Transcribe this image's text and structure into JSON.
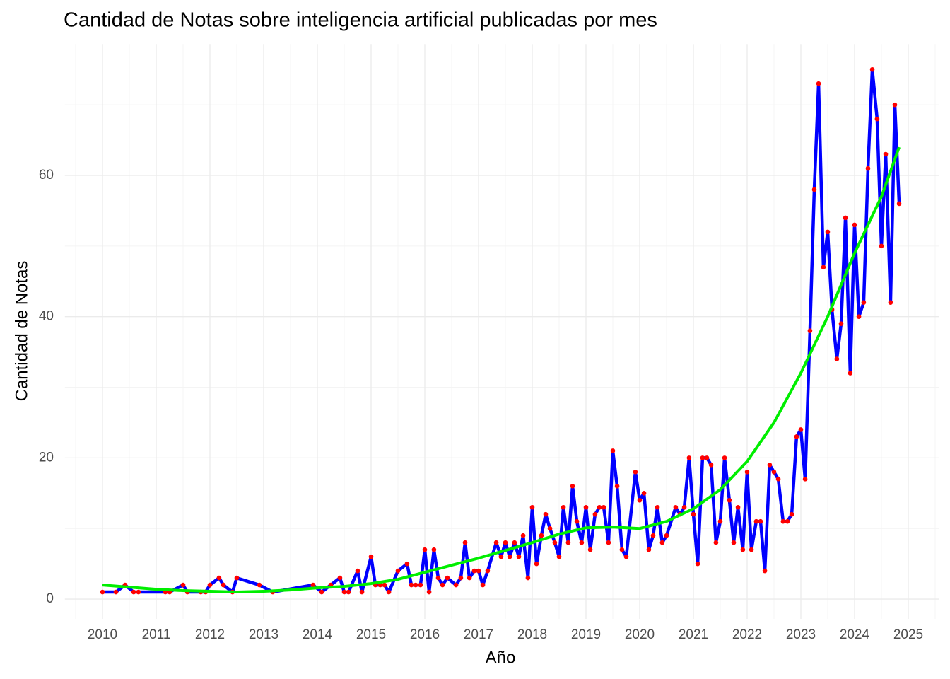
{
  "chart_data": {
    "type": "line",
    "title": "Cantidad de Notas sobre inteligencia artificial publicadas por mes",
    "x_label": "Año",
    "y_label": "Cantidad de Notas",
    "xlim": [
      2009.3,
      2025.57
    ],
    "ylim": [
      -2.8,
      78.6
    ],
    "xticks": [
      2010,
      2011,
      2012,
      2013,
      2014,
      2015,
      2016,
      2017,
      2018,
      2019,
      2020,
      2021,
      2022,
      2023,
      2024,
      2025
    ],
    "yticks": [
      0,
      20,
      40,
      60
    ],
    "x_minor_ticks": [
      2009.5,
      2010.5,
      2011.5,
      2012.5,
      2013.5,
      2014.5,
      2015.5,
      2016.5,
      2017.5,
      2018.5,
      2019.5,
      2020.5,
      2021.5,
      2022.5,
      2023.5,
      2024.5,
      2025.5
    ],
    "y_minor_ticks": [
      10,
      30,
      50,
      70
    ],
    "grid": true,
    "series": [
      {
        "color": "#0000ff",
        "marker_color": "#ff0000",
        "x": [
          2010.0,
          2010.25,
          2010.42,
          2010.58,
          2010.67,
          2011.17,
          2011.25,
          2011.5,
          2011.58,
          2011.83,
          2011.92,
          2012.0,
          2012.17,
          2012.25,
          2012.42,
          2012.5,
          2012.92,
          2013.17,
          2013.92,
          2014.08,
          2014.25,
          2014.42,
          2014.5,
          2014.58,
          2014.75,
          2014.83,
          2015.0,
          2015.08,
          2015.17,
          2015.25,
          2015.33,
          2015.5,
          2015.67,
          2015.75,
          2015.83,
          2015.92,
          2016.0,
          2016.08,
          2016.17,
          2016.25,
          2016.33,
          2016.42,
          2016.58,
          2016.67,
          2016.75,
          2016.83,
          2016.92,
          2017.0,
          2017.08,
          2017.17,
          2017.33,
          2017.42,
          2017.5,
          2017.58,
          2017.67,
          2017.75,
          2017.83,
          2017.92,
          2018.0,
          2018.08,
          2018.17,
          2018.25,
          2018.33,
          2018.42,
          2018.5,
          2018.58,
          2018.67,
          2018.75,
          2018.83,
          2018.92,
          2019.0,
          2019.08,
          2019.17,
          2019.25,
          2019.33,
          2019.42,
          2019.5,
          2019.58,
          2019.67,
          2019.75,
          2019.92,
          2020.0,
          2020.08,
          2020.17,
          2020.25,
          2020.33,
          2020.42,
          2020.5,
          2020.67,
          2020.75,
          2020.83,
          2020.92,
          2021.0,
          2021.08,
          2021.17,
          2021.25,
          2021.33,
          2021.42,
          2021.5,
          2021.58,
          2021.67,
          2021.75,
          2021.83,
          2021.92,
          2022.0,
          2022.08,
          2022.17,
          2022.25,
          2022.33,
          2022.42,
          2022.5,
          2022.58,
          2022.67,
          2022.75,
          2022.83,
          2022.92,
          2023.0,
          2023.08,
          2023.17,
          2023.25,
          2023.33,
          2023.42,
          2023.5,
          2023.58,
          2023.67,
          2023.75,
          2023.83,
          2023.92,
          2024.0,
          2024.08,
          2024.17,
          2024.25,
          2024.33,
          2024.42,
          2024.5,
          2024.58,
          2024.67,
          2024.75,
          2024.83
        ],
        "values": [
          1,
          1,
          2,
          1,
          1,
          1,
          1,
          2,
          1,
          1,
          1,
          2,
          3,
          2,
          1,
          3,
          2,
          1,
          2,
          1,
          2,
          3,
          1,
          1,
          4,
          1,
          6,
          2,
          2,
          2,
          1,
          4,
          5,
          2,
          2,
          2,
          7,
          1,
          7,
          3,
          2,
          3,
          2,
          3,
          8,
          3,
          4,
          4,
          2,
          4,
          8,
          6,
          8,
          6,
          8,
          6,
          9,
          3,
          13,
          5,
          9,
          12,
          10,
          8,
          6,
          13,
          8,
          16,
          11,
          8,
          13,
          7,
          12,
          13,
          13,
          8,
          21,
          16,
          7,
          6,
          18,
          14,
          15,
          7,
          9,
          13,
          8,
          9,
          13,
          12,
          13,
          20,
          12,
          5,
          20,
          20,
          19,
          8,
          11,
          20,
          14,
          8,
          13,
          7,
          18,
          7,
          11,
          11,
          4,
          19,
          18,
          17,
          11,
          11,
          12,
          23,
          24,
          17,
          38,
          58,
          73,
          47,
          52,
          41,
          34,
          39,
          54,
          32,
          53,
          40,
          42,
          61,
          75,
          68,
          50,
          63,
          42,
          70,
          56
        ]
      },
      {
        "color": "#00ee00",
        "x": [
          2010.0,
          2010.5,
          2011.0,
          2011.5,
          2012.0,
          2012.5,
          2013.0,
          2013.5,
          2014.0,
          2014.5,
          2015.0,
          2015.5,
          2016.0,
          2016.5,
          2017.0,
          2017.5,
          2018.0,
          2018.5,
          2019.0,
          2019.5,
          2020.0,
          2020.5,
          2021.0,
          2021.5,
          2022.0,
          2022.5,
          2023.0,
          2023.5,
          2024.0,
          2024.5,
          2024.83
        ],
        "values": [
          2,
          1.7,
          1.4,
          1.2,
          1.1,
          1.0,
          1.1,
          1.3,
          1.6,
          1.8,
          2.2,
          2.8,
          3.8,
          4.8,
          5.8,
          6.9,
          8,
          9.2,
          10.1,
          10.2,
          10,
          11,
          12.8,
          15.5,
          19.5,
          25,
          32,
          40,
          49,
          57,
          64
        ]
      }
    ]
  }
}
